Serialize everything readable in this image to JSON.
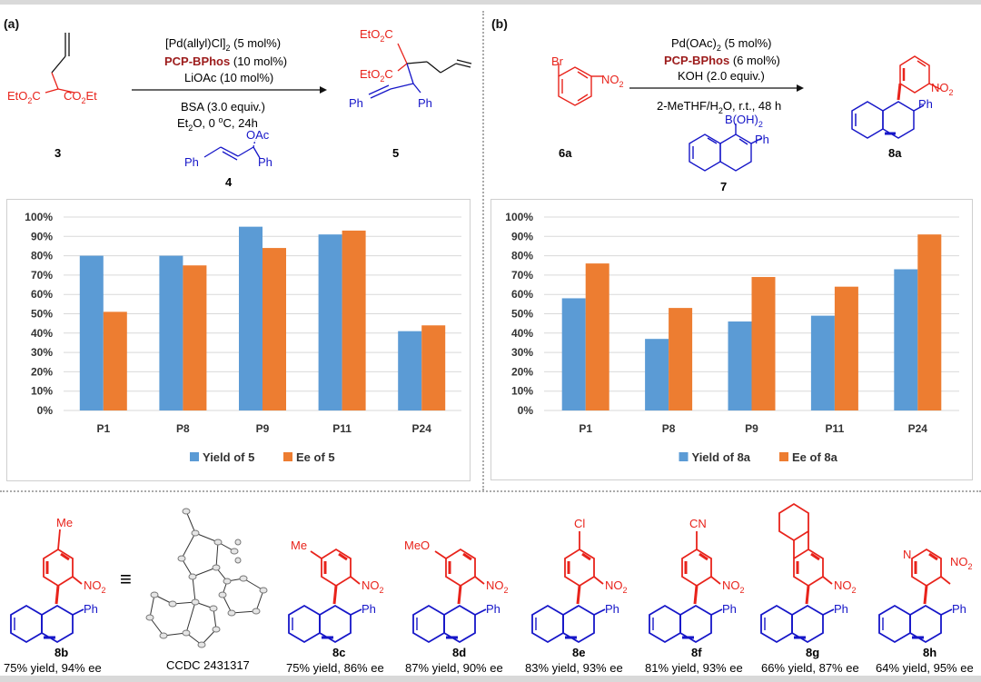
{
  "panels": [
    {
      "label": "(a)",
      "conditions": [
        "[Pd(allyl)Cl]",
        "(5 mol%)",
        "PCP-BPhos",
        "(10 mol%)",
        "LiOAc (10 mol%)",
        "BSA (3.0 equiv.)",
        "Et",
        "O, 0 ",
        "C, 24h"
      ],
      "compounds": {
        "malonate": {
          "left_ester": "EtO",
          "left_ester_tail": "C",
          "right_ester": "CO",
          "right_ester_tail": "Et",
          "sub": "2",
          "id": "3"
        },
        "acetate": {
          "group": "OAc",
          "ph_left": "Ph",
          "ph_right": "Ph",
          "id": "4"
        },
        "product": {
          "ester_top": "EtO",
          "ester_top_tail": "C",
          "ester_bottom": "EtO",
          "ester_bottom_tail": "C",
          "ph_left": "Ph",
          "ph_right": "Ph",
          "id": "5"
        }
      }
    },
    {
      "label": "(b)",
      "conditions": [
        "Pd(OAc)",
        "(5 mol%)",
        "PCP-BPhos",
        "(6 mol%)",
        "KOH (2.0 equiv.)",
        "2-MeTHF/H",
        "O, r.t., 48 h"
      ],
      "compounds": {
        "bromide": {
          "br": "Br",
          "no2": "NO",
          "sub": "2",
          "id": "6a"
        },
        "boronic": {
          "group": "B(OH)",
          "ph": "Ph",
          "id": "7"
        },
        "product": {
          "no2": "NO",
          "ph": "Ph",
          "id": "8a"
        }
      }
    }
  ],
  "chart_data": [
    {
      "type": "bar",
      "categories": [
        "P1",
        "P8",
        "P9",
        "P11",
        "P24"
      ],
      "series": [
        {
          "name": "Yield of 5",
          "values": [
            80,
            80,
            95,
            91,
            41
          ],
          "color": "#5b9bd5"
        },
        {
          "name": "Ee of 5",
          "values": [
            51,
            75,
            84,
            93,
            44
          ],
          "color": "#ed7d31"
        }
      ],
      "ylim": [
        0,
        100
      ],
      "yticks": [
        "0%",
        "10%",
        "20%",
        "30%",
        "40%",
        "50%",
        "60%",
        "70%",
        "80%",
        "90%",
        "100%"
      ],
      "grid": true,
      "legend": "bottom",
      "title": "",
      "xlabel": "",
      "ylabel": ""
    },
    {
      "type": "bar",
      "categories": [
        "P1",
        "P8",
        "P9",
        "P11",
        "P24"
      ],
      "series": [
        {
          "name": "Yield of 8a",
          "values": [
            58,
            37,
            46,
            49,
            73
          ],
          "color": "#5b9bd5"
        },
        {
          "name": "Ee of 8a",
          "values": [
            76,
            53,
            69,
            64,
            91
          ],
          "color": "#ed7d31"
        }
      ],
      "ylim": [
        0,
        100
      ],
      "yticks": [
        "0%",
        "10%",
        "20%",
        "30%",
        "40%",
        "50%",
        "60%",
        "70%",
        "80%",
        "90%",
        "100%"
      ],
      "grid": true,
      "legend": "bottom",
      "title": "",
      "xlabel": "",
      "ylabel": ""
    }
  ],
  "scope": {
    "crystal_label": "CCDC 2431317",
    "equiv_symbol": "≡",
    "items": [
      {
        "id": "8b",
        "result": "75% yield, 94% ee",
        "substituent": "Me"
      },
      {
        "id": "8c",
        "result": "75% yield, 86% ee",
        "substituent": "Me"
      },
      {
        "id": "8d",
        "result": "87% yield, 90% ee",
        "substituent": "MeO"
      },
      {
        "id": "8e",
        "result": "83% yield, 93% ee",
        "substituent": "Cl"
      },
      {
        "id": "8f",
        "result": "81% yield, 93% ee",
        "substituent": "CN"
      },
      {
        "id": "8g",
        "result": "66% yield, 87% ee",
        "substituent": ""
      },
      {
        "id": "8h",
        "result": "64% yield, 95% ee",
        "substituent": "N"
      }
    ],
    "labels": {
      "no2": "NO",
      "sub2": "2",
      "ph": "Ph"
    }
  },
  "colors": {
    "red": "#e8231b",
    "blue": "#1616c8",
    "darkred": "#9c1b1b",
    "yield": "#5b9bd5",
    "ee": "#ed7d31"
  }
}
